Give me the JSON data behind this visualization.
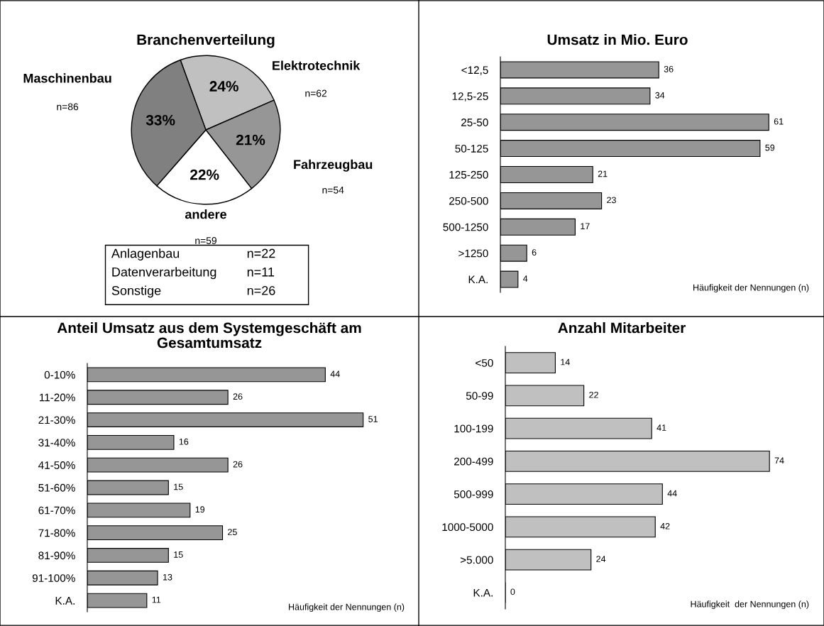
{
  "chart_data": [
    {
      "type": "pie",
      "title": "Branchenverteilung",
      "categories": [
        "Elektrotechnik",
        "Fahrzeugbau",
        "andere",
        "Maschinenbau"
      ],
      "values": [
        24,
        21,
        22,
        33
      ],
      "colors": [
        "#c0c0c0",
        "#969696",
        "#ffffff",
        "#808080"
      ],
      "value_labels": [
        "24%",
        "21%",
        "22%",
        "33%"
      ],
      "annotations": [
        "n=62",
        "n=54",
        "n=59",
        "n=86",
        "Anlagenbau",
        "n=22",
        "Datenverarbeitung",
        "n=11",
        "Sonstige",
        "n=26"
      ]
    },
    {
      "type": "bar",
      "orientation": "horizontal",
      "title": "Umsatz in Mio. Euro",
      "xlabel": "Häufigkeit der Nennungen (n)",
      "categories": [
        "<12,5",
        "12,5-25",
        "25-50",
        "50-125",
        "125-250",
        "250-500",
        "500-1250",
        ">1250",
        "K.A."
      ],
      "values": [
        36,
        34,
        61,
        59,
        21,
        23,
        17,
        6,
        4
      ],
      "color": "#969696",
      "data_labels": true
    },
    {
      "type": "bar",
      "orientation": "horizontal",
      "title": "Anteil Umsatz aus dem Systemgeschäft am\nGesamtumsatz",
      "xlabel": "Häufigkeit der Nennungen (n)",
      "categories": [
        "0-10%",
        "11-20%",
        "21-30%",
        "31-40%",
        "41-50%",
        "51-60%",
        "61-70%",
        "71-80%",
        "81-90%",
        "91-100%",
        "K.A."
      ],
      "values": [
        44,
        26,
        51,
        16,
        26,
        15,
        19,
        25,
        15,
        13,
        11
      ],
      "color": "#969696",
      "data_labels": true
    },
    {
      "type": "bar",
      "orientation": "horizontal",
      "title": "Anzahl Mitarbeiter",
      "xlabel": "Häufigkeit  der Nennungen (n)",
      "categories": [
        "<50",
        "50-99",
        "100-199",
        "200-499",
        "500-999",
        "1000-5000",
        ">5.000",
        "K.A."
      ],
      "values": [
        14,
        22,
        41,
        74,
        44,
        42,
        24,
        0
      ],
      "color": "#c0c0c0",
      "data_labels": true
    }
  ]
}
